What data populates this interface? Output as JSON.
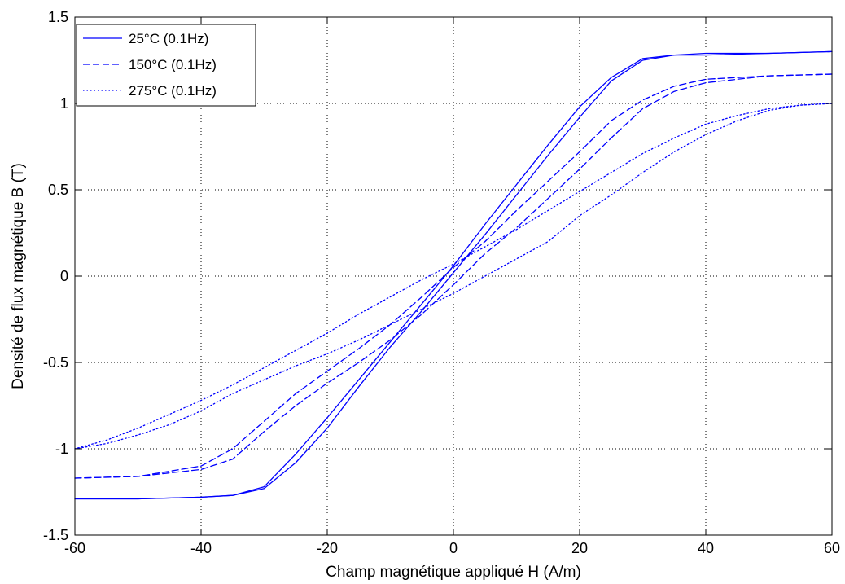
{
  "chart_data": {
    "type": "line",
    "title": "",
    "xlabel": "Champ magnétique appliqué H (A/m)",
    "ylabel": "Densité de flux magnétique B (T)",
    "xlim": [
      -60,
      60
    ],
    "ylim": [
      -1.5,
      1.5
    ],
    "xticks": [
      -60,
      -40,
      -20,
      0,
      20,
      40,
      60
    ],
    "xtick_labels": [
      "-60",
      "-40",
      "-20",
      "0",
      "20",
      "40",
      "60"
    ],
    "yticks": [
      -1.5,
      -1,
      -0.5,
      0,
      0.5,
      1,
      1.5
    ],
    "ytick_labels": [
      "-1.5",
      "-1",
      "-0.5",
      "0",
      "0.5",
      "1",
      "1.5"
    ],
    "grid": true,
    "legend_position": "top-left",
    "line_color": "#0000ff",
    "series": [
      {
        "name": "25°C (0.1Hz)",
        "style": "solid",
        "ascending": [
          {
            "x": -60,
            "y": -1.29
          },
          {
            "x": -50,
            "y": -1.29
          },
          {
            "x": -40,
            "y": -1.28
          },
          {
            "x": -35,
            "y": -1.27
          },
          {
            "x": -30,
            "y": -1.23
          },
          {
            "x": -25,
            "y": -1.08
          },
          {
            "x": -20,
            "y": -0.88
          },
          {
            "x": -15,
            "y": -0.64
          },
          {
            "x": -10,
            "y": -0.41
          },
          {
            "x": -5,
            "y": -0.2
          },
          {
            "x": 0,
            "y": 0.02
          },
          {
            "x": 5,
            "y": 0.24
          },
          {
            "x": 10,
            "y": 0.47
          },
          {
            "x": 15,
            "y": 0.7
          },
          {
            "x": 20,
            "y": 0.92
          },
          {
            "x": 25,
            "y": 1.13
          },
          {
            "x": 30,
            "y": 1.25
          },
          {
            "x": 35,
            "y": 1.28
          },
          {
            "x": 40,
            "y": 1.28
          },
          {
            "x": 50,
            "y": 1.29
          },
          {
            "x": 60,
            "y": 1.3
          }
        ],
        "descending": [
          {
            "x": 60,
            "y": 1.3
          },
          {
            "x": 50,
            "y": 1.29
          },
          {
            "x": 40,
            "y": 1.29
          },
          {
            "x": 35,
            "y": 1.28
          },
          {
            "x": 30,
            "y": 1.26
          },
          {
            "x": 25,
            "y": 1.15
          },
          {
            "x": 20,
            "y": 0.98
          },
          {
            "x": 15,
            "y": 0.76
          },
          {
            "x": 10,
            "y": 0.53
          },
          {
            "x": 5,
            "y": 0.3
          },
          {
            "x": 0,
            "y": 0.06
          },
          {
            "x": -5,
            "y": -0.16
          },
          {
            "x": -10,
            "y": -0.38
          },
          {
            "x": -15,
            "y": -0.6
          },
          {
            "x": -20,
            "y": -0.82
          },
          {
            "x": -25,
            "y": -1.03
          },
          {
            "x": -30,
            "y": -1.22
          },
          {
            "x": -35,
            "y": -1.27
          },
          {
            "x": -40,
            "y": -1.28
          },
          {
            "x": -50,
            "y": -1.29
          },
          {
            "x": -60,
            "y": -1.29
          }
        ]
      },
      {
        "name": "150°C (0.1Hz)",
        "style": "dashed",
        "ascending": [
          {
            "x": -60,
            "y": -1.17
          },
          {
            "x": -50,
            "y": -1.16
          },
          {
            "x": -40,
            "y": -1.12
          },
          {
            "x": -35,
            "y": -1.06
          },
          {
            "x": -30,
            "y": -0.9
          },
          {
            "x": -25,
            "y": -0.75
          },
          {
            "x": -20,
            "y": -0.62
          },
          {
            "x": -15,
            "y": -0.5
          },
          {
            "x": -10,
            "y": -0.37
          },
          {
            "x": -5,
            "y": -0.22
          },
          {
            "x": 0,
            "y": -0.05
          },
          {
            "x": 5,
            "y": 0.13
          },
          {
            "x": 10,
            "y": 0.28
          },
          {
            "x": 15,
            "y": 0.45
          },
          {
            "x": 20,
            "y": 0.62
          },
          {
            "x": 25,
            "y": 0.8
          },
          {
            "x": 30,
            "y": 0.97
          },
          {
            "x": 35,
            "y": 1.07
          },
          {
            "x": 40,
            "y": 1.12
          },
          {
            "x": 50,
            "y": 1.16
          },
          {
            "x": 60,
            "y": 1.17
          }
        ],
        "descending": [
          {
            "x": 60,
            "y": 1.17
          },
          {
            "x": 50,
            "y": 1.16
          },
          {
            "x": 40,
            "y": 1.14
          },
          {
            "x": 35,
            "y": 1.1
          },
          {
            "x": 30,
            "y": 1.02
          },
          {
            "x": 25,
            "y": 0.9
          },
          {
            "x": 20,
            "y": 0.72
          },
          {
            "x": 15,
            "y": 0.55
          },
          {
            "x": 10,
            "y": 0.38
          },
          {
            "x": 5,
            "y": 0.2
          },
          {
            "x": 0,
            "y": 0.05
          },
          {
            "x": -5,
            "y": -0.12
          },
          {
            "x": -10,
            "y": -0.28
          },
          {
            "x": -15,
            "y": -0.42
          },
          {
            "x": -20,
            "y": -0.55
          },
          {
            "x": -25,
            "y": -0.68
          },
          {
            "x": -30,
            "y": -0.84
          },
          {
            "x": -35,
            "y": -1.0
          },
          {
            "x": -40,
            "y": -1.1
          },
          {
            "x": -50,
            "y": -1.16
          },
          {
            "x": -60,
            "y": -1.17
          }
        ]
      },
      {
        "name": "275°C (0.1Hz)",
        "style": "dotted",
        "ascending": [
          {
            "x": -60,
            "y": -1.0
          },
          {
            "x": -55,
            "y": -0.97
          },
          {
            "x": -50,
            "y": -0.92
          },
          {
            "x": -45,
            "y": -0.86
          },
          {
            "x": -40,
            "y": -0.78
          },
          {
            "x": -35,
            "y": -0.68
          },
          {
            "x": -30,
            "y": -0.6
          },
          {
            "x": -25,
            "y": -0.52
          },
          {
            "x": -20,
            "y": -0.45
          },
          {
            "x": -15,
            "y": -0.37
          },
          {
            "x": -10,
            "y": -0.28
          },
          {
            "x": -5,
            "y": -0.19
          },
          {
            "x": 0,
            "y": -0.1
          },
          {
            "x": 5,
            "y": 0.0
          },
          {
            "x": 10,
            "y": 0.1
          },
          {
            "x": 15,
            "y": 0.2
          },
          {
            "x": 20,
            "y": 0.35
          },
          {
            "x": 25,
            "y": 0.47
          },
          {
            "x": 30,
            "y": 0.6
          },
          {
            "x": 35,
            "y": 0.72
          },
          {
            "x": 40,
            "y": 0.82
          },
          {
            "x": 45,
            "y": 0.9
          },
          {
            "x": 50,
            "y": 0.96
          },
          {
            "x": 55,
            "y": 0.99
          },
          {
            "x": 60,
            "y": 1.0
          }
        ],
        "descending": [
          {
            "x": 60,
            "y": 1.0
          },
          {
            "x": 55,
            "y": 0.99
          },
          {
            "x": 50,
            "y": 0.97
          },
          {
            "x": 45,
            "y": 0.93
          },
          {
            "x": 40,
            "y": 0.88
          },
          {
            "x": 35,
            "y": 0.8
          },
          {
            "x": 30,
            "y": 0.71
          },
          {
            "x": 25,
            "y": 0.6
          },
          {
            "x": 20,
            "y": 0.49
          },
          {
            "x": 15,
            "y": 0.38
          },
          {
            "x": 10,
            "y": 0.27
          },
          {
            "x": 5,
            "y": 0.17
          },
          {
            "x": 0,
            "y": 0.07
          },
          {
            "x": -5,
            "y": -0.02
          },
          {
            "x": -10,
            "y": -0.12
          },
          {
            "x": -15,
            "y": -0.22
          },
          {
            "x": -20,
            "y": -0.33
          },
          {
            "x": -25,
            "y": -0.43
          },
          {
            "x": -30,
            "y": -0.53
          },
          {
            "x": -35,
            "y": -0.63
          },
          {
            "x": -40,
            "y": -0.72
          },
          {
            "x": -45,
            "y": -0.8
          },
          {
            "x": -50,
            "y": -0.88
          },
          {
            "x": -55,
            "y": -0.95
          },
          {
            "x": -60,
            "y": -1.0
          }
        ]
      }
    ]
  }
}
